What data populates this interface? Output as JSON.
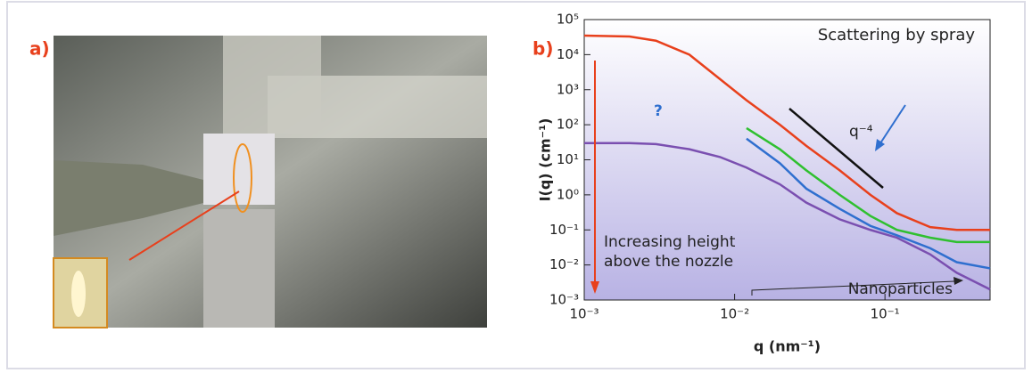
{
  "panel_labels": [
    "a)",
    "b)"
  ],
  "chart_data": {
    "type": "line",
    "log_x": true,
    "log_y": true,
    "x_label": "q (nm⁻¹)",
    "y_label": "I(q) (cm⁻¹)",
    "x": [
      0.001,
      0.002,
      0.003,
      0.005,
      0.008,
      0.012,
      0.02,
      0.03,
      0.05,
      0.08,
      0.12,
      0.2,
      0.3,
      0.5
    ],
    "series": [
      {
        "color": "#e8401c",
        "values": [
          35000,
          33000,
          25000,
          10000,
          2000,
          500,
          100,
          25,
          5,
          1,
          0.3,
          0.12,
          0.1,
          0.1
        ]
      },
      {
        "color": "#2fc02f",
        "values": [
          null,
          null,
          null,
          null,
          null,
          80,
          20,
          5,
          1,
          0.25,
          0.1,
          0.06,
          0.045,
          0.045
        ]
      },
      {
        "color": "#2f6fcf",
        "values": [
          null,
          null,
          null,
          null,
          null,
          40,
          8,
          1.5,
          0.4,
          0.13,
          0.07,
          0.03,
          0.012,
          0.008
        ]
      },
      {
        "color": "#7a4fb0",
        "values": [
          30,
          30,
          28,
          20,
          12,
          6,
          2,
          0.6,
          0.2,
          0.1,
          0.06,
          0.02,
          0.006,
          0.002
        ]
      }
    ],
    "xlim": [
      0.001,
      0.5
    ],
    "ylim": [
      0.001,
      100000
    ],
    "xticks": [
      {
        "value": 0.001,
        "label": "10⁻³"
      },
      {
        "value": 0.01,
        "label": "10⁻²"
      },
      {
        "value": 0.1,
        "label": "10⁻¹"
      }
    ],
    "yticks": [
      {
        "value": 0.001,
        "label": "10⁻³"
      },
      {
        "value": 0.01,
        "label": "10⁻²"
      },
      {
        "value": 0.1,
        "label": "10⁻¹"
      },
      {
        "value": 1,
        "label": "10⁰"
      },
      {
        "value": 10,
        "label": "10¹"
      },
      {
        "value": 100,
        "label": "10²"
      },
      {
        "value": 1000,
        "label": "10³"
      },
      {
        "value": 10000,
        "label": "10⁴"
      },
      {
        "value": 100000,
        "label": "10⁵"
      }
    ],
    "annotations": [
      "Scattering by spray",
      "q⁻⁴",
      "?",
      "Nanoparticles"
    ],
    "height_note": [
      "Increasing height",
      "above the nozzle"
    ]
  }
}
